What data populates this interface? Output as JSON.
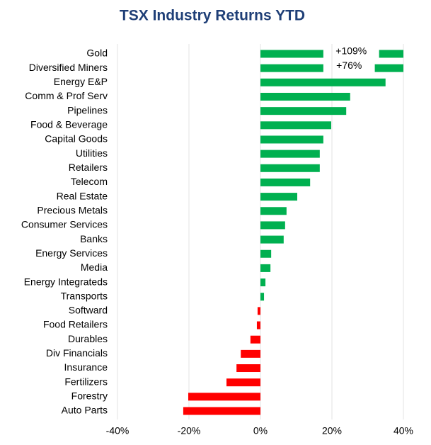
{
  "chart_data": {
    "type": "hbar",
    "title": "TSX Industry Returns YTD",
    "categories": [
      "Gold",
      "Diversified Miners",
      "Energy E&P",
      "Comm & Prof Serv",
      "Pipelines",
      "Food & Beverage",
      "Capital Goods",
      "Utilities",
      "Retailers",
      "Telecom",
      "Real Estate",
      "Precious Metals",
      "Consumer Services",
      "Banks",
      "Energy Services",
      "Media",
      "Energy Integrateds",
      "Transports",
      "Softward",
      "Food Retailers",
      "Durables",
      "Div Financials",
      "Insurance",
      "Fertilizers",
      "Forestry",
      "Auto Parts"
    ],
    "values": [
      109,
      76,
      35,
      25.1,
      24,
      19.8,
      17.6,
      16.6,
      16.6,
      13.9,
      10.3,
      7.3,
      6.9,
      6.5,
      3,
      2.8,
      1.4,
      1,
      -0.8,
      -1,
      -2.8,
      -5.5,
      -6.7,
      -9.5,
      -20.2,
      -21.6
    ],
    "value_labels": [
      "+109%",
      "+76%",
      null,
      null,
      null,
      null,
      null,
      null,
      null,
      null,
      null,
      null,
      null,
      null,
      null,
      null,
      null,
      null,
      null,
      null,
      null,
      null,
      null,
      null,
      null,
      null
    ],
    "positive_color": "#00b050",
    "negative_color": "#ff0000",
    "xlim": [
      -40,
      40
    ],
    "xticks": [
      {
        "value": -40,
        "label": "-40%"
      },
      {
        "value": -20,
        "label": "-20%"
      },
      {
        "value": 0,
        "label": "0%"
      },
      {
        "value": 20,
        "label": "20%"
      },
      {
        "value": 40,
        "label": "40%"
      }
    ],
    "grid": true
  }
}
